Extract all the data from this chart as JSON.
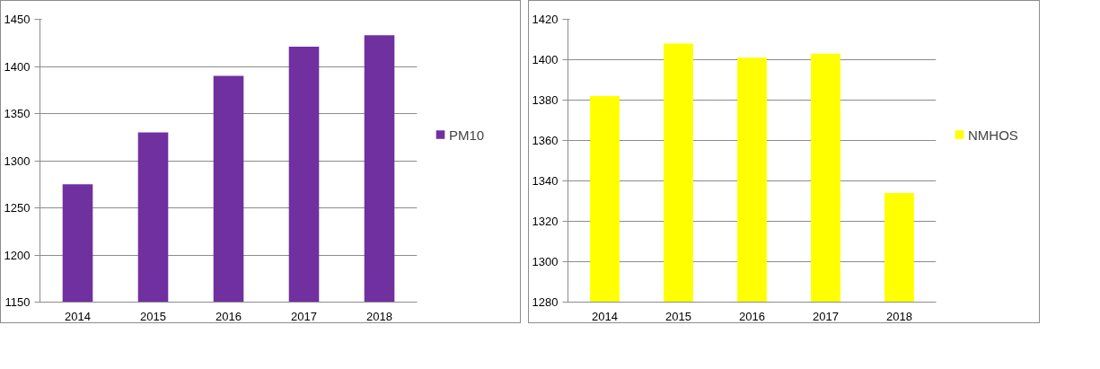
{
  "chart_data": [
    {
      "type": "bar",
      "categories": [
        "2014",
        "2015",
        "2016",
        "2017",
        "2018"
      ],
      "series": [
        {
          "name": "PM10",
          "color": "#7030a0",
          "values": [
            1275,
            1330,
            1390,
            1421,
            1433
          ]
        }
      ],
      "ylim": [
        1150,
        1450
      ],
      "yticks": [
        1150,
        1200,
        1250,
        1300,
        1350,
        1400,
        1450
      ],
      "grid": "y",
      "legend": "right"
    },
    {
      "type": "bar",
      "categories": [
        "2014",
        "2015",
        "2016",
        "2017",
        "2018"
      ],
      "series": [
        {
          "name": "NMHOS",
          "color": "#ffff00",
          "values": [
            1382,
            1408,
            1401,
            1403,
            1334
          ]
        }
      ],
      "ylim": [
        1280,
        1420
      ],
      "yticks": [
        1280,
        1300,
        1320,
        1340,
        1360,
        1380,
        1400,
        1420
      ],
      "grid": "y",
      "legend": "right"
    }
  ]
}
